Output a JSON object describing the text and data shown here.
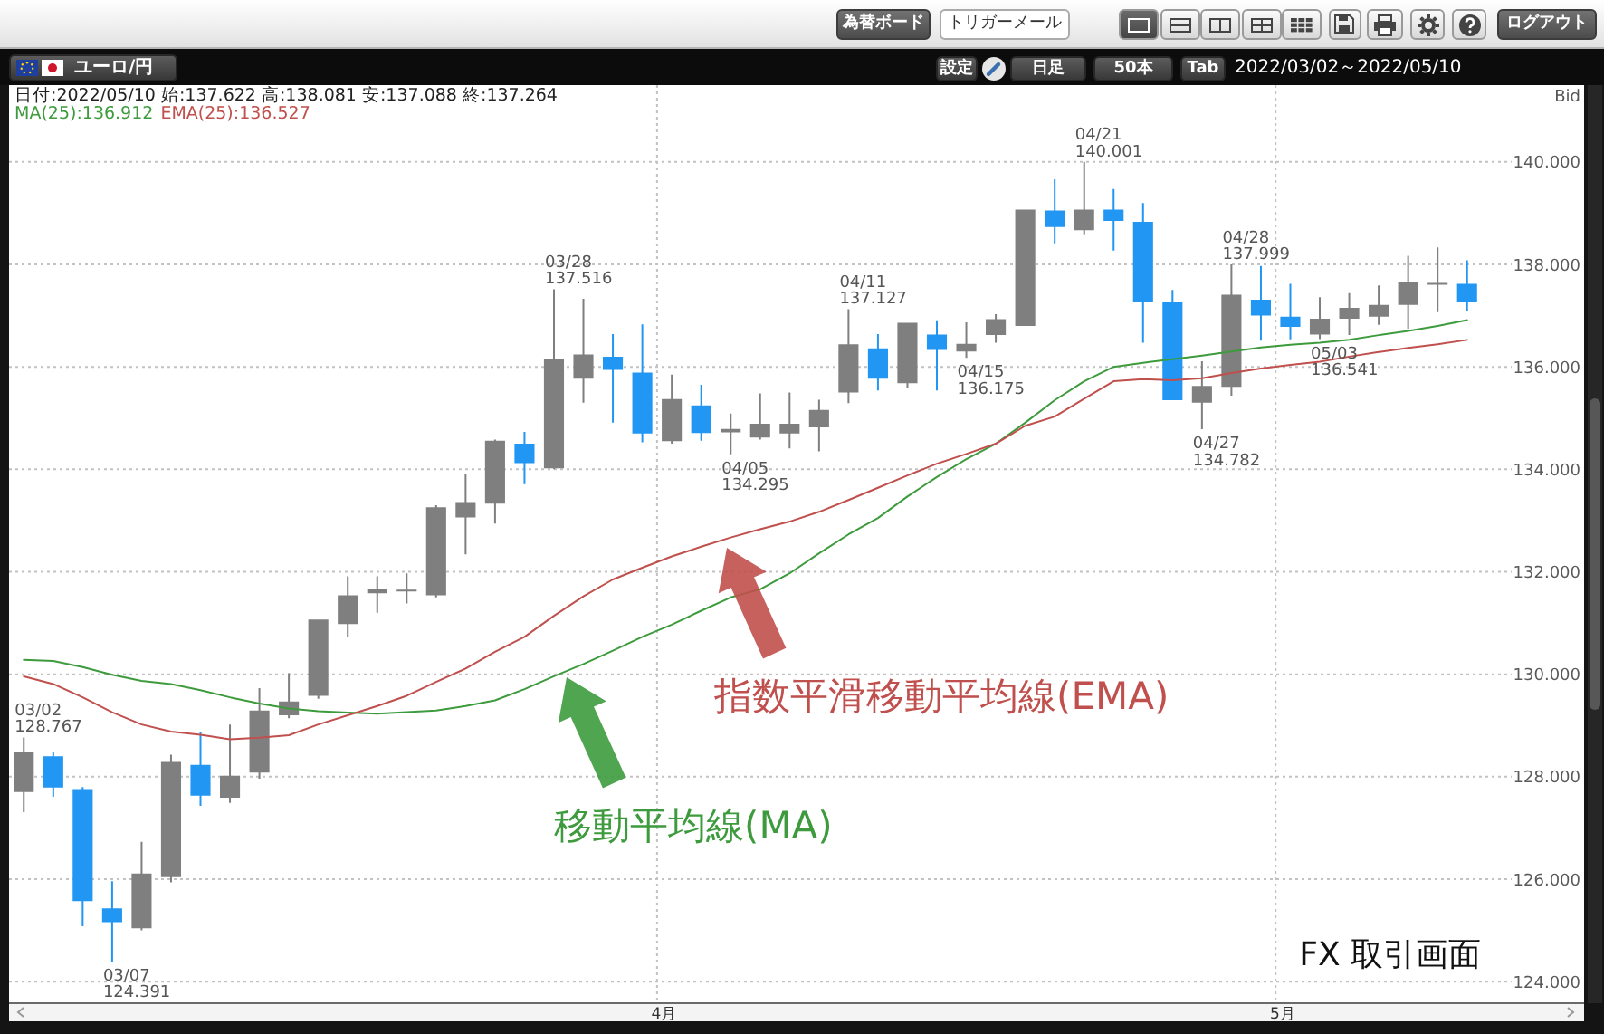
{
  "chart_data": {
    "type": "candlestick",
    "title": "ユーロ/円",
    "subtitle": "2022/03/02～2022/05/10",
    "ylabel": "Bid",
    "categories": [
      null,
      null,
      null,
      null,
      null,
      null,
      null,
      null,
      null,
      null,
      null,
      null,
      null,
      null,
      null,
      null,
      null,
      null,
      null,
      null,
      null,
      null,
      "4月",
      null,
      null,
      null,
      null,
      null,
      null,
      null,
      null,
      null,
      null,
      null,
      null,
      null,
      null,
      null,
      null,
      null,
      null,
      null,
      null,
      "5月",
      null,
      null,
      null,
      null,
      null,
      null
    ],
    "ohlc": [
      [
        127.7,
        128.767,
        127.31,
        128.49
      ],
      [
        128.4,
        128.49,
        127.61,
        127.79
      ],
      [
        127.76,
        127.8,
        125.08,
        125.57
      ],
      [
        125.43,
        125.96,
        124.391,
        125.16
      ],
      [
        125.04,
        126.73,
        125.0,
        126.11
      ],
      [
        126.04,
        128.43,
        125.94,
        128.29
      ],
      [
        128.23,
        128.88,
        127.43,
        127.63
      ],
      [
        127.59,
        129.02,
        127.49,
        128.02
      ],
      [
        128.08,
        129.73,
        127.96,
        129.29
      ],
      [
        129.2,
        130.02,
        129.14,
        129.47
      ],
      [
        129.58,
        131.07,
        129.52,
        131.07
      ],
      [
        130.98,
        131.91,
        130.73,
        131.54
      ],
      [
        131.58,
        131.91,
        131.2,
        131.66
      ],
      [
        131.63,
        131.97,
        131.38,
        131.65
      ],
      [
        131.54,
        133.3,
        131.5,
        133.26
      ],
      [
        133.06,
        133.9,
        132.34,
        133.36
      ],
      [
        133.33,
        134.58,
        132.94,
        134.56
      ],
      [
        134.5,
        134.73,
        133.71,
        134.12
      ],
      [
        134.02,
        137.516,
        134.0,
        136.15
      ],
      [
        135.77,
        137.33,
        135.3,
        136.24
      ],
      [
        136.2,
        136.64,
        134.91,
        135.94
      ],
      [
        135.89,
        136.83,
        134.53,
        134.7
      ],
      [
        134.55,
        135.85,
        134.5,
        135.37
      ],
      [
        135.25,
        135.65,
        134.56,
        134.71
      ],
      [
        134.72,
        135.09,
        134.295,
        134.79
      ],
      [
        134.62,
        135.48,
        134.58,
        134.89
      ],
      [
        134.7,
        135.5,
        134.41,
        134.89
      ],
      [
        134.82,
        135.36,
        134.35,
        135.16
      ],
      [
        135.5,
        137.127,
        135.29,
        136.44
      ],
      [
        136.36,
        136.64,
        135.54,
        135.77
      ],
      [
        135.68,
        136.86,
        135.59,
        136.86
      ],
      [
        136.63,
        136.91,
        135.54,
        136.33
      ],
      [
        136.3,
        136.87,
        136.175,
        136.45
      ],
      [
        136.62,
        137.03,
        136.47,
        136.93
      ],
      [
        136.8,
        139.07,
        136.8,
        139.07
      ],
      [
        139.05,
        139.66,
        138.41,
        138.73
      ],
      [
        138.67,
        140.001,
        138.59,
        139.07
      ],
      [
        139.07,
        139.47,
        138.27,
        138.85
      ],
      [
        138.83,
        139.2,
        136.47,
        137.26
      ],
      [
        137.27,
        137.5,
        135.35,
        135.35
      ],
      [
        135.3,
        136.11,
        134.782,
        135.63
      ],
      [
        135.61,
        137.999,
        135.44,
        137.41
      ],
      [
        137.31,
        137.97,
        136.51,
        137.0
      ],
      [
        136.98,
        137.62,
        136.54,
        136.78
      ],
      [
        136.63,
        137.36,
        136.541,
        136.94
      ],
      [
        136.94,
        137.44,
        136.62,
        137.15
      ],
      [
        136.98,
        137.59,
        136.82,
        137.21
      ],
      [
        137.21,
        138.17,
        136.74,
        137.66
      ],
      [
        137.62,
        138.33,
        137.07,
        137.64
      ],
      [
        137.622,
        138.081,
        137.088,
        137.264
      ]
    ],
    "colors": [
      "#7f7f7f",
      "#2196f3",
      "#2196f3",
      "#2196f3",
      "#7f7f7f",
      "#7f7f7f",
      "#2196f3",
      "#7f7f7f",
      "#7f7f7f",
      "#7f7f7f",
      "#7f7f7f",
      "#7f7f7f",
      "#7f7f7f",
      "#7f7f7f",
      "#7f7f7f",
      "#7f7f7f",
      "#7f7f7f",
      "#2196f3",
      "#7f7f7f",
      "#7f7f7f",
      "#2196f3",
      "#2196f3",
      "#7f7f7f",
      "#2196f3",
      "#7f7f7f",
      "#7f7f7f",
      "#7f7f7f",
      "#7f7f7f",
      "#7f7f7f",
      "#2196f3",
      "#7f7f7f",
      "#2196f3",
      "#7f7f7f",
      "#7f7f7f",
      "#7f7f7f",
      "#2196f3",
      "#7f7f7f",
      "#2196f3",
      "#2196f3",
      "#2196f3",
      "#7f7f7f",
      "#7f7f7f",
      "#2196f3",
      "#2196f3",
      "#7f7f7f",
      "#7f7f7f",
      "#7f7f7f",
      "#7f7f7f",
      "#7f7f7f",
      "#2196f3"
    ],
    "series": [
      {
        "name": "MA(25):136.912",
        "type": "line",
        "color": "#3d9b3d",
        "values": [
          130.28,
          130.26,
          130.14,
          129.99,
          129.87,
          129.81,
          129.69,
          129.55,
          129.43,
          129.33,
          129.28,
          129.25,
          129.23,
          129.26,
          129.29,
          129.38,
          129.49,
          129.71,
          129.96,
          130.2,
          130.46,
          130.73,
          130.97,
          131.24,
          131.5,
          131.66,
          131.97,
          132.36,
          132.73,
          133.05,
          133.47,
          133.85,
          134.2,
          134.5,
          134.91,
          135.35,
          135.72,
          136.0,
          136.08,
          136.15,
          136.22,
          136.3,
          136.38,
          136.43,
          136.47,
          136.53,
          136.62,
          136.7,
          136.8,
          136.912
        ]
      },
      {
        "name": "EMA(25):136.527",
        "type": "line",
        "color": "#c0504d",
        "values": [
          129.96,
          129.81,
          129.55,
          129.26,
          129.02,
          128.88,
          128.82,
          128.73,
          128.76,
          128.81,
          129.02,
          129.2,
          129.38,
          129.58,
          129.85,
          130.11,
          130.44,
          130.73,
          131.14,
          131.52,
          131.85,
          132.08,
          132.3,
          132.49,
          132.67,
          132.83,
          132.98,
          133.17,
          133.4,
          133.64,
          133.88,
          134.11,
          134.3,
          134.5,
          134.85,
          135.03,
          135.38,
          135.72,
          135.76,
          135.74,
          135.78,
          135.88,
          135.97,
          136.04,
          136.1,
          136.2,
          136.29,
          136.37,
          136.44,
          136.527
        ]
      }
    ],
    "ylim": [
      123.6,
      141.5
    ],
    "yticks": [
      {
        "value": 124,
        "label": "124.000"
      },
      {
        "value": 126,
        "label": "126.000"
      },
      {
        "value": 128,
        "label": "128.000"
      },
      {
        "value": 130,
        "label": "130.000"
      },
      {
        "value": 132,
        "label": "132.000"
      },
      {
        "value": 134,
        "label": "134.000"
      },
      {
        "value": 136,
        "label": "136.000"
      },
      {
        "value": 138,
        "label": "138.000"
      },
      {
        "value": 140,
        "label": "140.000"
      }
    ],
    "grid": true,
    "legend": "top left",
    "annotations": [
      "03/02\n128.767",
      "03/07\n124.391",
      "03/28\n137.516",
      "04/05\n134.295",
      "04/11\n137.127",
      "04/15\n136.175",
      "04/21\n140.001",
      "04/27\n134.782",
      "04/28\n137.999",
      "05/03\n136.541",
      "移動平均線(MA)",
      "指数平滑移動平均線(EMA)",
      "日付:2022/05/10 始:137.622 高:138.081 安:137.088 終:137.264",
      "FX 取引画面",
      "為替ボード",
      "トリガーメール",
      "ログアウト",
      "設定",
      "日足",
      "50本",
      "Tab"
    ]
  }
}
